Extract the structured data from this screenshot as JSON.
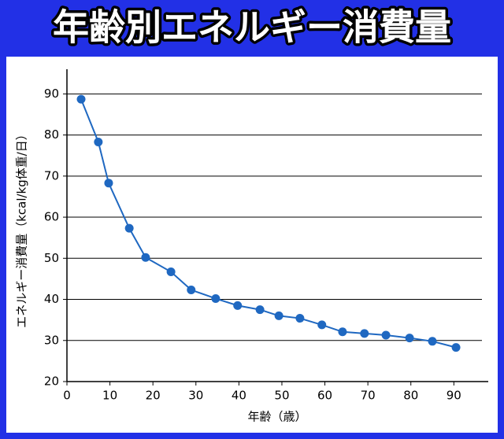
{
  "chart_data": {
    "type": "line",
    "title": "年齢別エネルギー消費量",
    "x_label": "年齢（歳）",
    "y_label": "エネルギー消費量（kcal/kg体重/日）",
    "x": [
      3.3,
      7.3,
      9.7,
      14.5,
      18.3,
      24.2,
      28.9,
      34.6,
      39.7,
      44.9,
      49.3,
      54.2,
      59.3,
      64.1,
      69.2,
      74.2,
      79.7,
      85,
      90.5
    ],
    "series": [
      {
        "color": "#1f68c1",
        "values": [
          88.7,
          78.3,
          68.3,
          57.3,
          50.2,
          46.7,
          42.3,
          40.2,
          38.5,
          37.5,
          36.0,
          35.4,
          33.8,
          32.1,
          31.7,
          31.3,
          30.6,
          29.8,
          28.3
        ]
      }
    ],
    "xlim": [
      0,
      98
    ],
    "ylim": [
      20,
      96
    ],
    "xticks": [
      0,
      10,
      20,
      30,
      40,
      50,
      60,
      70,
      80,
      90
    ],
    "yticks": [
      20,
      30,
      40,
      50,
      60,
      70,
      80,
      90
    ],
    "grid": true
  }
}
